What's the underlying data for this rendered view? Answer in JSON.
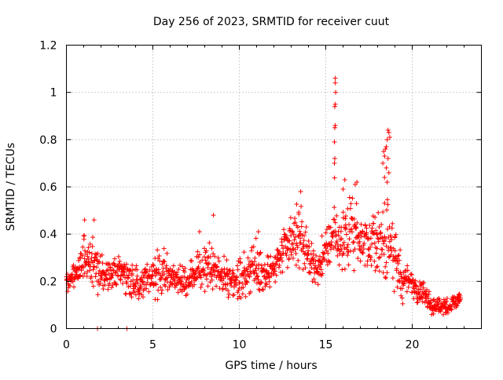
{
  "chart_data": {
    "type": "scatter",
    "title": "Day 256 of 2023, SRMTID for receiver cuut",
    "xlabel": "GPS time / hours",
    "ylabel": "SRMTID / TECUs",
    "xlim": [
      0,
      24
    ],
    "ylim": [
      0,
      1.2
    ],
    "x_ticks": [
      0,
      5,
      10,
      15,
      20
    ],
    "x_tick_labels": [
      "0",
      "5",
      "10",
      "15",
      "20"
    ],
    "y_ticks": [
      0,
      0.2,
      0.4,
      0.6,
      0.8,
      1.0,
      1.2
    ],
    "y_tick_labels": [
      "0",
      "0.2",
      "0.4",
      "0.6",
      "0.8",
      "1",
      "1.2"
    ],
    "grid": true,
    "marker": "+",
    "color": "#ff0000",
    "envelope": {
      "x": [
        0,
        0.5,
        1,
        1.5,
        2,
        2.5,
        3,
        3.5,
        4,
        4.5,
        5,
        5.5,
        6,
        6.5,
        7,
        7.5,
        8,
        8.5,
        9,
        9.5,
        10,
        10.5,
        11,
        11.5,
        12,
        12.5,
        13,
        13.5,
        14,
        14.5,
        15,
        15.25,
        15.5,
        15.75,
        16,
        16.5,
        17,
        17.5,
        18,
        18.5,
        18.75,
        19,
        19.5,
        20,
        20.5,
        21,
        21.5,
        22,
        22.5,
        22.8
      ],
      "low": [
        0.15,
        0.16,
        0.17,
        0.15,
        0.12,
        0.14,
        0.15,
        0.14,
        0.1,
        0.11,
        0.12,
        0.12,
        0.13,
        0.12,
        0.13,
        0.13,
        0.14,
        0.15,
        0.13,
        0.12,
        0.12,
        0.11,
        0.12,
        0.13,
        0.17,
        0.2,
        0.22,
        0.24,
        0.2,
        0.16,
        0.2,
        0.22,
        0.22,
        0.24,
        0.2,
        0.24,
        0.26,
        0.22,
        0.18,
        0.16,
        0.2,
        0.12,
        0.1,
        0.11,
        0.09,
        0.06,
        0.05,
        0.04,
        0.06,
        0.08
      ],
      "high": [
        0.24,
        0.28,
        0.44,
        0.4,
        0.33,
        0.3,
        0.32,
        0.33,
        0.29,
        0.3,
        0.33,
        0.36,
        0.3,
        0.29,
        0.28,
        0.33,
        0.37,
        0.4,
        0.31,
        0.3,
        0.33,
        0.35,
        0.4,
        0.34,
        0.34,
        0.45,
        0.5,
        0.55,
        0.42,
        0.34,
        0.44,
        0.5,
        0.65,
        0.46,
        0.56,
        0.58,
        0.52,
        0.48,
        0.52,
        0.56,
        0.6,
        0.44,
        0.3,
        0.28,
        0.22,
        0.17,
        0.14,
        0.14,
        0.15,
        0.19
      ]
    },
    "spikes": [
      {
        "x": 15.55,
        "y": 1.06
      },
      {
        "x": 15.55,
        "y": 1.04
      },
      {
        "x": 15.57,
        "y": 1.0
      },
      {
        "x": 15.55,
        "y": 0.95
      },
      {
        "x": 15.52,
        "y": 0.94
      },
      {
        "x": 15.55,
        "y": 0.86
      },
      {
        "x": 15.52,
        "y": 0.85
      },
      {
        "x": 15.5,
        "y": 0.79
      },
      {
        "x": 15.52,
        "y": 0.72
      },
      {
        "x": 15.5,
        "y": 0.7
      },
      {
        "x": 18.6,
        "y": 0.84
      },
      {
        "x": 18.65,
        "y": 0.83
      },
      {
        "x": 18.55,
        "y": 0.8
      },
      {
        "x": 18.7,
        "y": 0.81
      },
      {
        "x": 18.5,
        "y": 0.77
      },
      {
        "x": 18.45,
        "y": 0.76
      },
      {
        "x": 18.35,
        "y": 0.75
      },
      {
        "x": 18.4,
        "y": 0.73
      },
      {
        "x": 18.6,
        "y": 0.72
      },
      {
        "x": 18.3,
        "y": 0.7
      },
      {
        "x": 18.5,
        "y": 0.68
      },
      {
        "x": 18.65,
        "y": 0.66
      },
      {
        "x": 18.4,
        "y": 0.64
      },
      {
        "x": 18.55,
        "y": 0.62
      },
      {
        "x": 13.55,
        "y": 0.58
      },
      {
        "x": 16.1,
        "y": 0.63
      },
      {
        "x": 16.0,
        "y": 0.59
      },
      {
        "x": 16.7,
        "y": 0.61
      },
      {
        "x": 16.8,
        "y": 0.62
      },
      {
        "x": 1.05,
        "y": 0.46
      },
      {
        "x": 1.6,
        "y": 0.46
      },
      {
        "x": 8.5,
        "y": 0.48
      },
      {
        "x": 11.1,
        "y": 0.41
      },
      {
        "x": 7.7,
        "y": 0.41
      },
      {
        "x": 1.8,
        "y": 0.0
      },
      {
        "x": 3.5,
        "y": 0.0
      }
    ]
  }
}
